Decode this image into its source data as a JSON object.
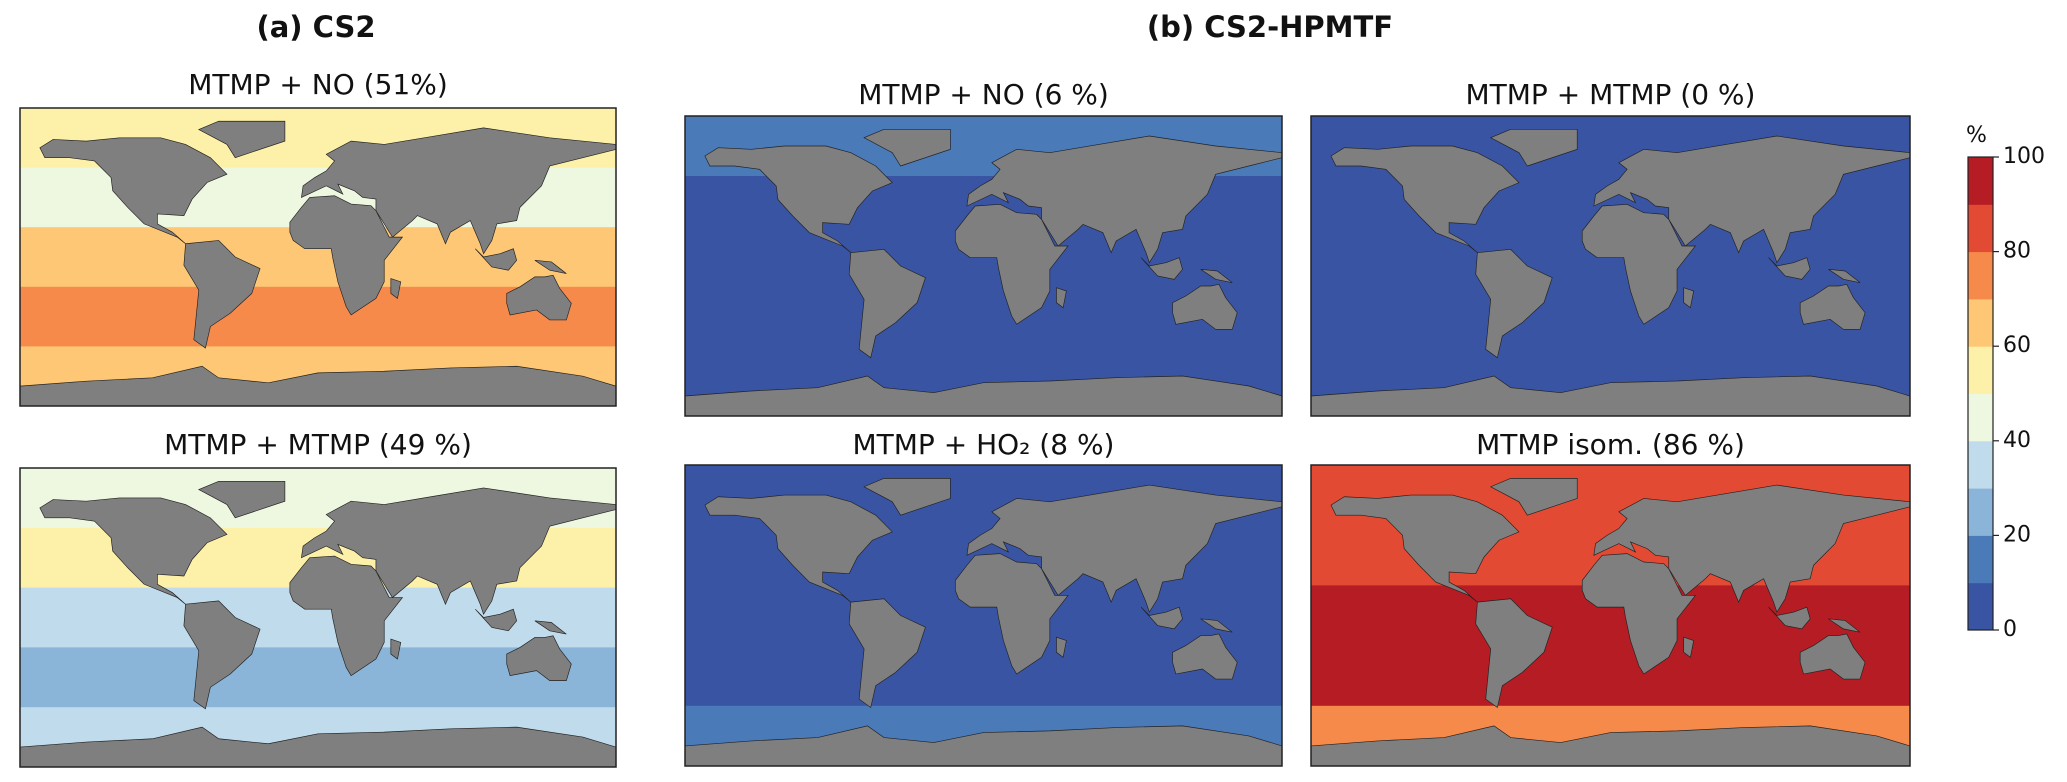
{
  "groups": [
    {
      "title": "(a) CS2"
    },
    {
      "title": "(b) CS2-HPMTF"
    }
  ],
  "panels": [
    {
      "title": "MTMP + NO (51%)",
      "ocean": [
        "#fdf0a8",
        "#eef7e0",
        "#fdc775",
        "#f58a4b",
        "#fdc775"
      ]
    },
    {
      "title": "MTMP + MTMP (49 %)",
      "ocean": [
        "#eef7e0",
        "#fdf0a8",
        "#c0dcec",
        "#8bb5d8",
        "#c0dcec"
      ]
    },
    {
      "title": "MTMP + NO (6 %)",
      "ocean": [
        "#4a7ab8",
        "#3a54a4",
        "#3a54a4",
        "#3a54a4",
        "#3a54a4"
      ]
    },
    {
      "title": "MTMP + MTMP (0 %)",
      "ocean": [
        "#3a54a4",
        "#3a54a4",
        "#3a54a4",
        "#3a54a4",
        "#3a54a4"
      ]
    },
    {
      "title": "MTMP + HO₂ (8 %)",
      "ocean": [
        "#3a54a4",
        "#3a54a4",
        "#3a54a4",
        "#3a54a4",
        "#4a7ab8"
      ]
    },
    {
      "title": "MTMP isom. (86 %)",
      "ocean": [
        "#e34a33",
        "#e34a33",
        "#b51c24",
        "#b51c24",
        "#f58a4b"
      ]
    }
  ],
  "colorbar": {
    "label": "%",
    "lim": [
      0,
      100
    ],
    "ticks": [
      0,
      20,
      40,
      60,
      80,
      100
    ],
    "colors": [
      "#3a54a4",
      "#4a7ab8",
      "#8bb5d8",
      "#c0dcec",
      "#eef7e0",
      "#fdf0a8",
      "#fdc775",
      "#f58a4b",
      "#e34a33",
      "#b51c24"
    ]
  }
}
